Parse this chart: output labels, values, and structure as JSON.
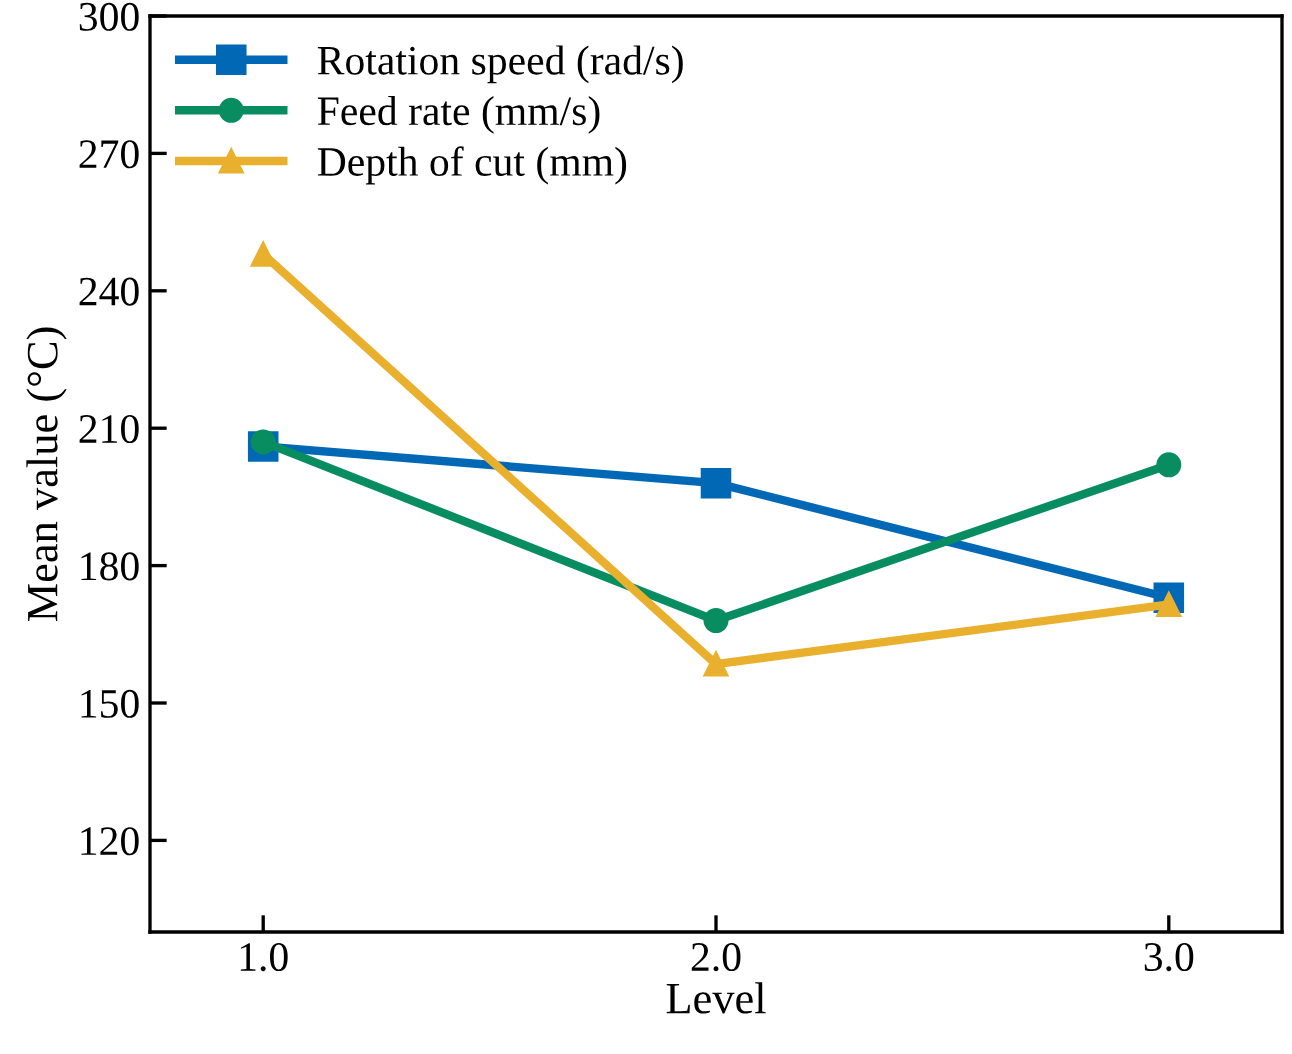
{
  "chart_data": {
    "type": "line",
    "xlabel": "Level",
    "ylabel": "Mean value (°C)",
    "x": [
      1.0,
      2.0,
      3.0
    ],
    "xlim": [
      0.75,
      3.25
    ],
    "xticks": [
      {
        "value": 1.0,
        "label": "1.0"
      },
      {
        "value": 2.0,
        "label": "2.0"
      },
      {
        "value": 3.0,
        "label": "3.0"
      }
    ],
    "ylim": [
      100,
      300
    ],
    "yticks": [
      120,
      150,
      180,
      210,
      240,
      270,
      300
    ],
    "grid": false,
    "legend": "top left",
    "series": [
      {
        "name": "Rotation speed (rad/s)",
        "color": "#0068b5",
        "marker": "square",
        "values": [
          206,
          198,
          173
        ]
      },
      {
        "name": "Feed rate (mm/s)",
        "color": "#078d5f",
        "marker": "circle",
        "values": [
          207,
          168,
          202
        ]
      },
      {
        "name": "Depth of cut (mm)",
        "color": "#e9b02e",
        "marker": "triangle",
        "values": [
          248,
          158.5,
          171.5
        ]
      }
    ]
  }
}
